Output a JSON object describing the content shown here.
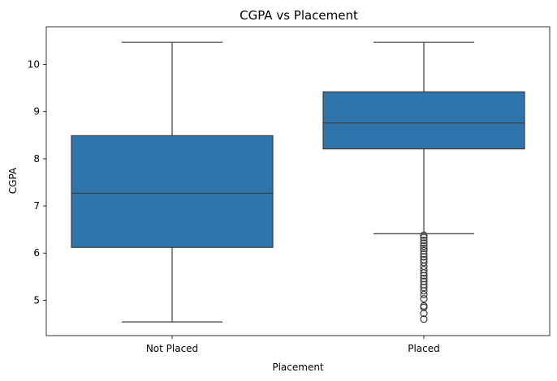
{
  "chart_data": {
    "type": "box",
    "title": "CGPA vs Placement",
    "xlabel": "Placement",
    "ylabel": "CGPA",
    "categories": [
      "Not Placed",
      "Placed"
    ],
    "ylim": [
      4.25,
      10.8
    ],
    "yticks": [
      "5",
      "6",
      "7",
      "8",
      "9",
      "10"
    ],
    "yticks_values": [
      5,
      6,
      7,
      8,
      9,
      10
    ],
    "grid": false,
    "legend": "none",
    "box_color": "#2f75ac",
    "line_color": "#3d3d3d",
    "boxes": [
      {
        "category": "Not Placed",
        "whisker_low": 4.54,
        "q1": 6.12,
        "median": 7.27,
        "q3": 8.49,
        "whisker_high": 10.47,
        "outliers": []
      },
      {
        "category": "Placed",
        "whisker_low": 6.41,
        "q1": 8.21,
        "median": 8.76,
        "q3": 9.42,
        "whisker_high": 10.47,
        "outliers": [
          6.38,
          6.33,
          6.27,
          6.21,
          6.15,
          6.1,
          6.05,
          5.98,
          5.92,
          5.86,
          5.8,
          5.72,
          5.65,
          5.58,
          5.52,
          5.46,
          5.4,
          5.33,
          5.27,
          5.2,
          5.12,
          5.03,
          4.88,
          4.85,
          4.72,
          4.6
        ]
      }
    ]
  }
}
